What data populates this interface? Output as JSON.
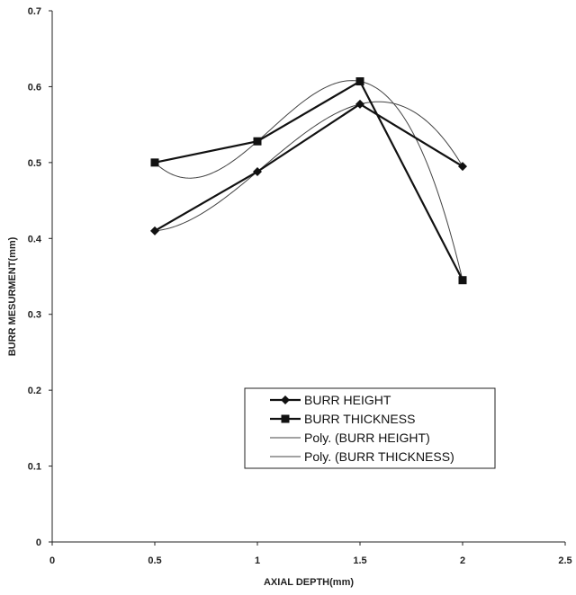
{
  "chart_data": {
    "type": "line",
    "xlabel": "AXIAL DEPTH(mm)",
    "ylabel": "BURR MESURMENT(mm)",
    "xlim": [
      0,
      2.5
    ],
    "ylim": [
      0,
      0.7
    ],
    "xticks": [
      "0",
      "0.5",
      "1",
      "1.5",
      "2",
      "2.5"
    ],
    "yticks": [
      "0",
      "0.1",
      "0.2",
      "0.3",
      "0.4",
      "0.5",
      "0.6",
      "0.7"
    ],
    "grid": false,
    "legend_position": "bottom-right",
    "x": [
      0.5,
      1,
      1.5,
      2
    ],
    "series": [
      {
        "name": "BURR HEIGHT",
        "marker": "diamond",
        "values": [
          0.41,
          0.488,
          0.577,
          0.495
        ]
      },
      {
        "name": "BURR THICKNESS",
        "marker": "square",
        "values": [
          0.5,
          0.528,
          0.607,
          0.345
        ]
      }
    ],
    "trendlines": [
      {
        "name": "Poly. (BURR HEIGHT)",
        "of": "BURR HEIGHT",
        "order": 3
      },
      {
        "name": "Poly. (BURR THICKNESS)",
        "of": "BURR THICKNESS",
        "order": 3
      }
    ]
  }
}
